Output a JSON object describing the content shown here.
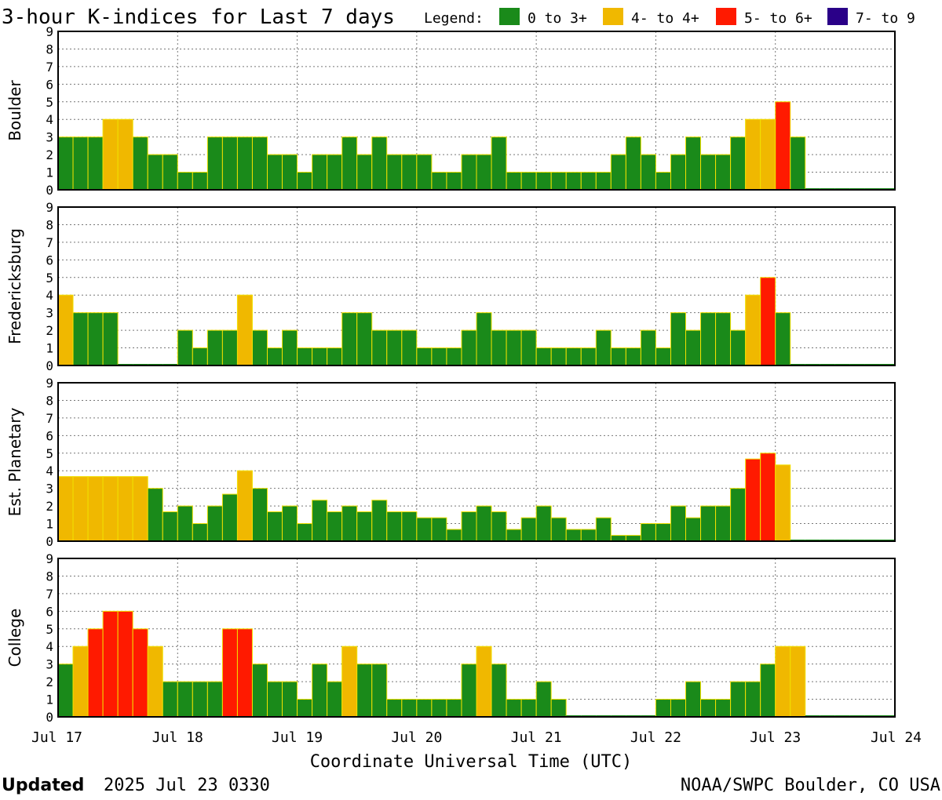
{
  "title": "3-hour K-indices for Last 7 days",
  "legend": {
    "label": "Legend:",
    "items": [
      {
        "label": "0 to 3+",
        "color": "#1a8a1a"
      },
      {
        "label": "4- to 4+",
        "color": "#f0b800"
      },
      {
        "label": "5- to 6+",
        "color": "#ff1a00"
      },
      {
        "label": "7- to 9",
        "color": "#2a0088"
      }
    ]
  },
  "footer": {
    "updated_label": "Updated",
    "updated_value": "2025 Jul 23 0330",
    "credit": "NOAA/SWPC Boulder, CO USA"
  },
  "chart_data": {
    "type": "bar",
    "xlabel": "Coordinate Universal Time (UTC)",
    "x_ticks": [
      "Jul 17",
      "Jul 18",
      "Jul 19",
      "Jul 20",
      "Jul 21",
      "Jul 22",
      "Jul 23",
      "Jul 24"
    ],
    "ylim": [
      0,
      9
    ],
    "y_ticks": [
      0,
      1,
      2,
      3,
      4,
      5,
      6,
      7,
      8,
      9
    ],
    "grid": true,
    "bins_per_day": 8,
    "panels": [
      {
        "name": "Boulder",
        "values": [
          3,
          3,
          3,
          4,
          4,
          3,
          2,
          2,
          1,
          1,
          3,
          3,
          3,
          3,
          2,
          2,
          1,
          2,
          2,
          3,
          2,
          3,
          2,
          2,
          2,
          1,
          1,
          2,
          2,
          3,
          1,
          1,
          1,
          1,
          1,
          1,
          1,
          2,
          3,
          2,
          1,
          2,
          3,
          2,
          2,
          3,
          4,
          4,
          5,
          3,
          0,
          0,
          0,
          0,
          0,
          0
        ]
      },
      {
        "name": "Fredericksburg",
        "values": [
          4,
          3,
          3,
          3,
          0,
          0,
          0,
          0,
          2,
          1,
          2,
          2,
          4,
          2,
          1,
          2,
          1,
          1,
          1,
          3,
          3,
          2,
          2,
          2,
          1,
          1,
          1,
          2,
          3,
          2,
          2,
          2,
          1,
          1,
          1,
          1,
          2,
          1,
          1,
          2,
          1,
          3,
          2,
          3,
          3,
          2,
          4,
          5,
          3,
          0,
          0,
          0,
          0,
          0,
          0,
          0
        ]
      },
      {
        "name": "Est. Planetary",
        "values": [
          3.67,
          3.67,
          3.67,
          3.67,
          3.67,
          3.67,
          3,
          1.67,
          2,
          1,
          2,
          2.67,
          4,
          3,
          1.67,
          2,
          1,
          2.33,
          1.67,
          2,
          1.67,
          2.33,
          1.67,
          1.67,
          1.33,
          1.33,
          0.67,
          1.67,
          2,
          1.67,
          0.67,
          1.33,
          2,
          1.33,
          0.67,
          0.67,
          1.33,
          0.33,
          0.33,
          1,
          1,
          2,
          1.33,
          2,
          2,
          3,
          4.67,
          5,
          4.33,
          0,
          0,
          0,
          0,
          0,
          0,
          0
        ]
      },
      {
        "name": "College",
        "values": [
          3,
          4,
          5,
          6,
          6,
          5,
          4,
          2,
          2,
          2,
          2,
          5,
          5,
          3,
          2,
          2,
          1,
          3,
          2,
          4,
          3,
          3,
          1,
          1,
          1,
          1,
          1,
          3,
          4,
          3,
          1,
          1,
          2,
          1,
          0,
          0,
          0,
          0,
          0,
          0,
          1,
          1,
          2,
          1,
          1,
          2,
          2,
          3,
          4,
          4,
          0,
          0,
          0,
          0,
          0,
          0
        ]
      }
    ]
  }
}
